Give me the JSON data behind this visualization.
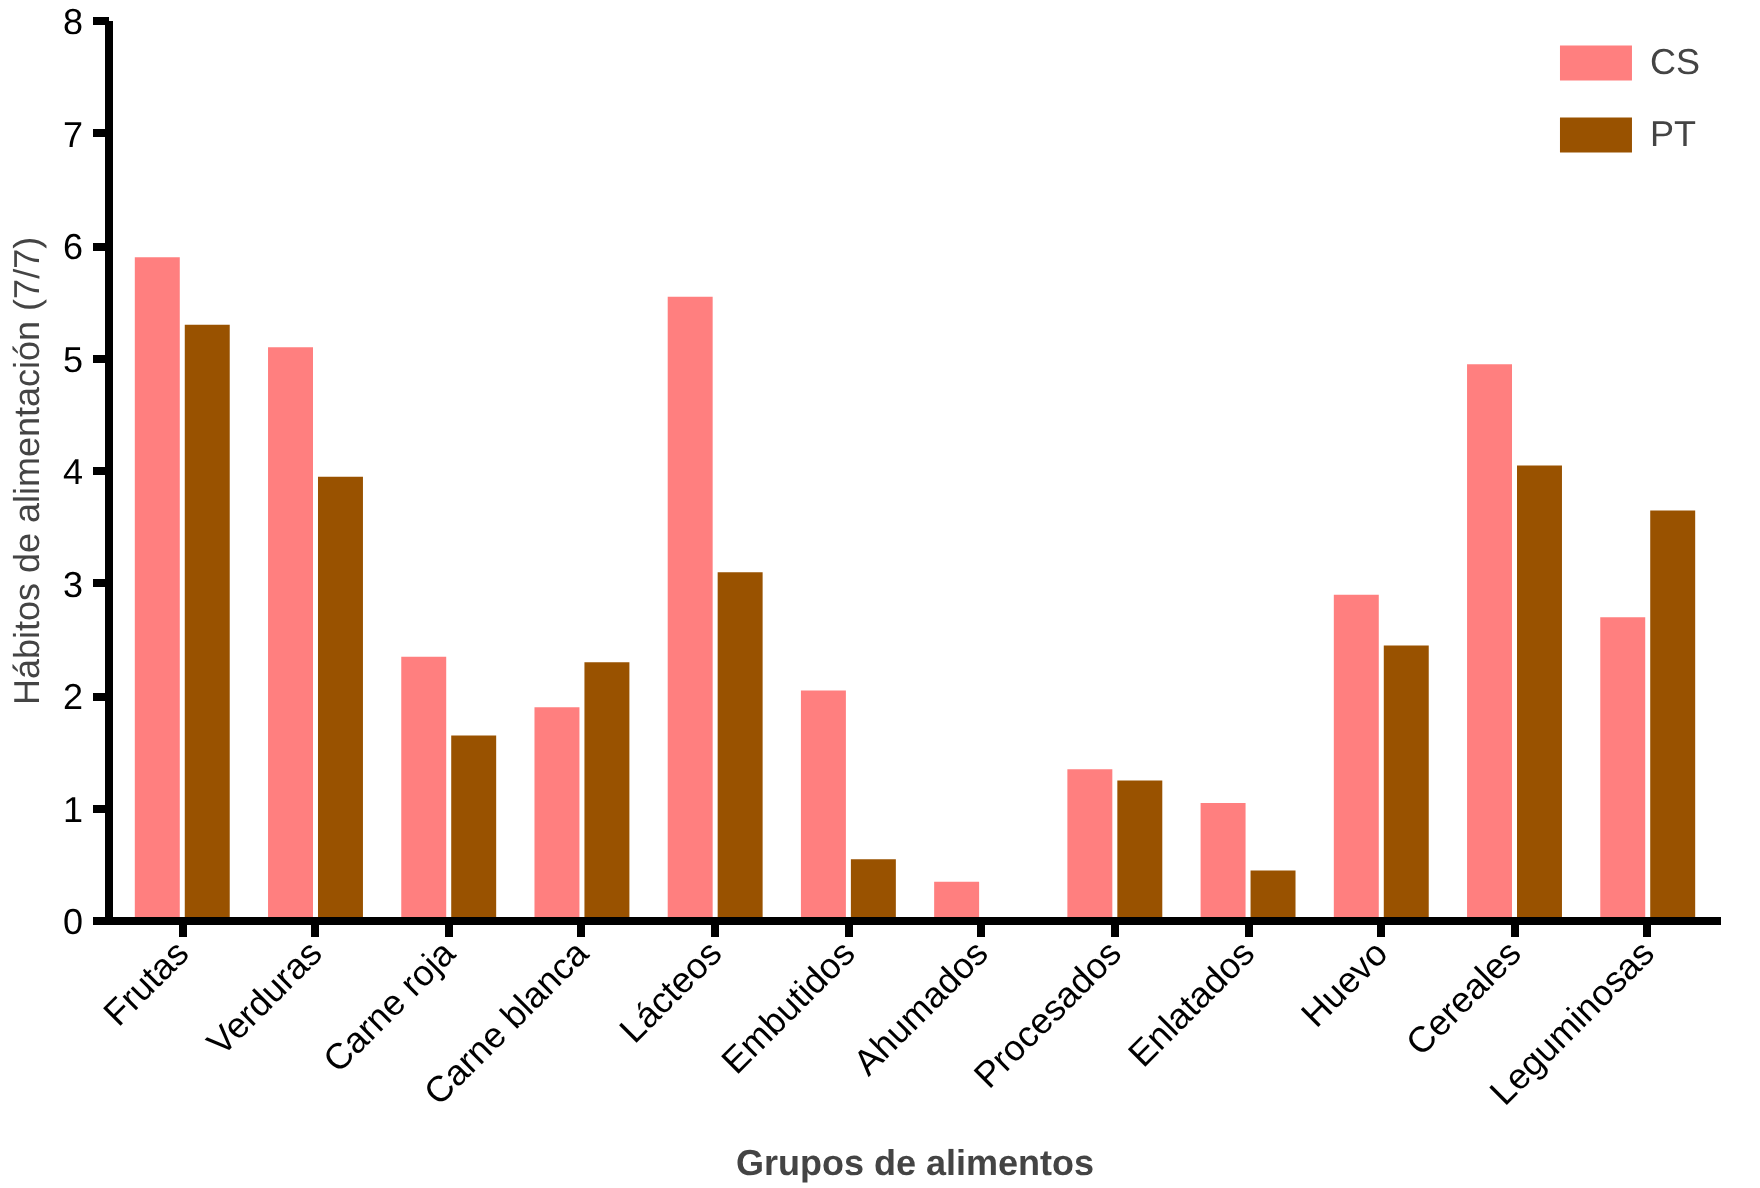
{
  "chart_data": {
    "type": "bar",
    "xlabel": "Grupos de alimentos",
    "ylabel": "Hábitos de alimentación (7/7)",
    "categories": [
      "Frutas",
      "Verduras",
      "Carne roja",
      "Carne blanca",
      "Lácteos",
      "Embutidos",
      "Ahumados",
      "Procesados",
      "Enlatados",
      "Huevo",
      "Cereales",
      "Leguminosas"
    ],
    "series": [
      {
        "name": "CS",
        "color": "#ff7f7f",
        "values": [
          5.9,
          5.1,
          2.35,
          1.9,
          5.55,
          2.05,
          0.35,
          1.35,
          1.05,
          2.9,
          4.95,
          2.7
        ]
      },
      {
        "name": "PT",
        "color": "#995200",
        "values": [
          5.3,
          3.95,
          1.65,
          2.3,
          3.1,
          0.55,
          0,
          1.25,
          0.45,
          2.45,
          4.05,
          3.65
        ]
      }
    ],
    "ylim": [
      0,
      8
    ],
    "yticks": [
      0,
      1,
      2,
      3,
      4,
      5,
      6,
      7,
      8
    ],
    "grid": false,
    "legend": "top right"
  }
}
